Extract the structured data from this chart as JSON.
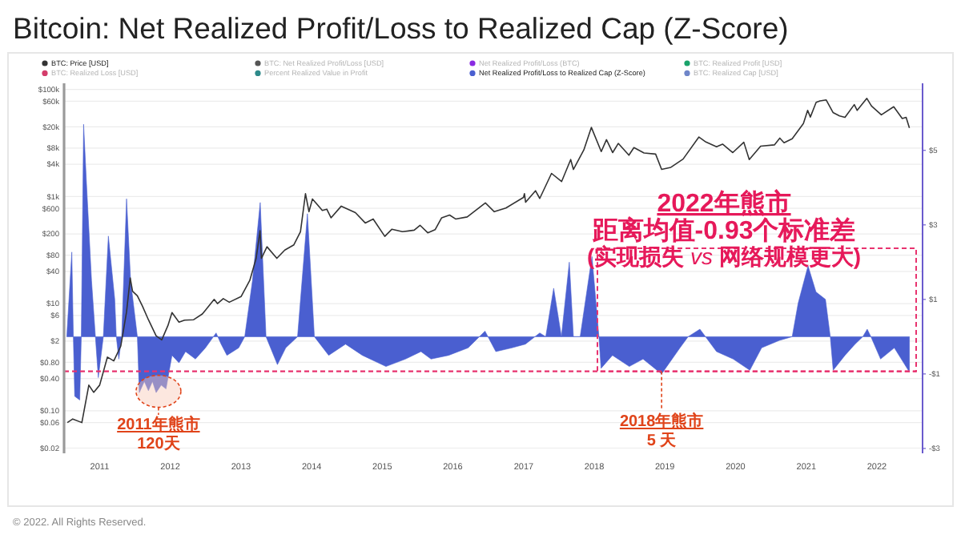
{
  "chart_data": {
    "type": "line",
    "title": "Bitcoin: Net Realized Profit/Loss to Realized Cap (Z-Score)",
    "xlim": [
      "2010-07-01",
      "2022-08-25"
    ],
    "marker": "none",
    "xticks": [
      {
        "value": "2011-01-01",
        "label": "2011"
      },
      {
        "value": "2012-01-01",
        "label": "2012"
      },
      {
        "value": "2013-01-01",
        "label": "2013"
      },
      {
        "value": "2014-01-01",
        "label": "2014"
      },
      {
        "value": "2015-01-01",
        "label": "2015"
      },
      {
        "value": "2016-01-01",
        "label": "2016"
      },
      {
        "value": "2017-01-01",
        "label": "2017"
      },
      {
        "value": "2018-01-01",
        "label": "2018"
      },
      {
        "value": "2019-01-01",
        "label": "2019"
      },
      {
        "value": "2020-01-01",
        "label": "2020"
      },
      {
        "value": "2021-01-01",
        "label": "2021"
      },
      {
        "value": "2022-01-01",
        "label": "2022"
      }
    ],
    "log": "y",
    "ylim": [
      0.016,
      130000
    ],
    "yticks": [
      {
        "value": 100000,
        "label": "$100k"
      },
      {
        "value": 60000,
        "label": "$60k"
      },
      {
        "value": 20000,
        "label": "$20k"
      },
      {
        "value": 8000,
        "label": "$8k"
      },
      {
        "value": 4000,
        "label": "$4k"
      },
      {
        "value": 1000,
        "label": "$1k"
      },
      {
        "value": 600,
        "label": "$600"
      },
      {
        "value": 200,
        "label": "$200"
      },
      {
        "value": 80,
        "label": "$80"
      },
      {
        "value": 40,
        "label": "$40"
      },
      {
        "value": 10,
        "label": "$10"
      },
      {
        "value": 6,
        "label": "$6"
      },
      {
        "value": 2,
        "label": "$2"
      },
      {
        "value": 0.8,
        "label": "$0.80"
      },
      {
        "value": 0.4,
        "label": "$0.40"
      },
      {
        "value": 0.1,
        "label": "$0.10"
      },
      {
        "value": 0.06,
        "label": "$0.06"
      },
      {
        "value": 0.02,
        "label": "$0.02"
      }
    ],
    "y2lim": [
      -3.13,
      6.8
    ],
    "y2ticks": [
      {
        "value": 5,
        "label": "$5"
      },
      {
        "value": 3,
        "label": "$3"
      },
      {
        "value": 1,
        "label": "$1"
      },
      {
        "value": -1,
        "label": "-$1"
      },
      {
        "value": -3,
        "label": "-$3"
      }
    ],
    "grid": "y",
    "legend": "top",
    "ref_lines": [
      {
        "axis": "y2",
        "value": -0.93,
        "color": "#e8336f",
        "line_style": "dashed"
      }
    ],
    "annotations": [
      "2022年熊市",
      "距离均值-0.93个标准差",
      "(实现损失 *vs* 网络规模更大)",
      {
        "text": "2011年熊市",
        "x": "2011-11-01",
        "y": 0.23
      },
      "120天",
      {
        "text": "2018年熊市",
        "x": "2018-12-15",
        "y": 0.54
      },
      "5 天",
      "© 2022. All Rights Reserved."
    ],
    "series": [
      {
        "name": "BTC: Price [USD]",
        "color": "#333333",
        "x": [
          "2010-07-18",
          "2010-08-15",
          "2010-10-01",
          "2010-11-06",
          "2010-12-01",
          "2011-01-01",
          "2011-02-10",
          "2011-03-15",
          "2011-04-20",
          "2011-05-20",
          "2011-06-08",
          "2011-06-20",
          "2011-07-15",
          "2011-08-10",
          "2011-09-10",
          "2011-10-20",
          "2011-11-18",
          "2011-12-20",
          "2012-01-10",
          "2012-02-15",
          "2012-03-15",
          "2012-05-01",
          "2012-06-15",
          "2012-08-15",
          "2012-09-01",
          "2012-10-01",
          "2012-11-01",
          "2013-01-01",
          "2013-02-15",
          "2013-03-20",
          "2013-04-09",
          "2013-04-16",
          "2013-05-15",
          "2013-07-05",
          "2013-08-15",
          "2013-10-01",
          "2013-11-04",
          "2013-11-30",
          "2013-12-18",
          "2014-01-05",
          "2014-02-25",
          "2014-03-20",
          "2014-04-11",
          "2014-06-03",
          "2014-08-15",
          "2014-10-05",
          "2014-11-15",
          "2015-01-14",
          "2015-02-20",
          "2015-04-15",
          "2015-06-15",
          "2015-07-15",
          "2015-08-24",
          "2015-10-01",
          "2015-11-04",
          "2015-12-15",
          "2016-01-15",
          "2016-03-15",
          "2016-06-17",
          "2016-08-02",
          "2016-10-01",
          "2016-12-31",
          "2017-01-05",
          "2017-01-11",
          "2017-03-03",
          "2017-03-25",
          "2017-05-25",
          "2017-07-16",
          "2017-09-01",
          "2017-09-15",
          "2017-11-08",
          "2017-12-17",
          "2018-02-06",
          "2018-03-05",
          "2018-04-06",
          "2018-05-05",
          "2018-06-29",
          "2018-07-25",
          "2018-09-15",
          "2018-11-14",
          "2018-12-15",
          "2019-02-01",
          "2019-04-05",
          "2019-06-26",
          "2019-08-01",
          "2019-09-25",
          "2019-10-26",
          "2019-12-18",
          "2020-02-13",
          "2020-03-12",
          "2020-05-10",
          "2020-07-20",
          "2020-08-17",
          "2020-09-08",
          "2020-10-20",
          "2020-12-17",
          "2021-01-08",
          "2021-01-22",
          "2021-02-21",
          "2021-03-13",
          "2021-04-14",
          "2021-05-19",
          "2021-06-22",
          "2021-07-20",
          "2021-09-06",
          "2021-09-21",
          "2021-11-10",
          "2021-12-04",
          "2022-01-24",
          "2022-03-29",
          "2022-05-12",
          "2022-06-01",
          "2022-06-18"
        ],
        "values": [
          0.06,
          0.07,
          0.06,
          0.3,
          0.22,
          0.3,
          1.0,
          0.85,
          1.6,
          7,
          30,
          17,
          14,
          9,
          5,
          2.5,
          2.1,
          3.9,
          6.8,
          4.5,
          4.9,
          5.0,
          6.4,
          12,
          10,
          12.4,
          10.6,
          13.5,
          27,
          70,
          230,
          70,
          115,
          70,
          100,
          125,
          220,
          1130,
          520,
          900,
          550,
          580,
          400,
          660,
          500,
          320,
          380,
          180,
          245,
          220,
          235,
          290,
          210,
          240,
          400,
          450,
          380,
          415,
          760,
          520,
          610,
          960,
          1130,
          780,
          1280,
          920,
          2700,
          1900,
          4900,
          3200,
          7400,
          19500,
          6900,
          11500,
          6600,
          9800,
          5900,
          8200,
          6500,
          6200,
          3200,
          3500,
          5000,
          12900,
          10400,
          8500,
          9500,
          6600,
          10300,
          4900,
          8700,
          9200,
          12300,
          10100,
          12000,
          23000,
          40500,
          30500,
          57500,
          61000,
          63500,
          37000,
          32000,
          30000,
          52000,
          40500,
          68000,
          49000,
          33500,
          47500,
          28500,
          30000,
          19000
        ]
      },
      {
        "name": "BTC: Net Realized Profit/Loss [USD]",
        "color": "#555555"
      },
      {
        "name": "Net Realized Profit/Loss (BTC)",
        "color": "#8a2be2"
      },
      {
        "name": "BTC: Realized Profit [USD]",
        "color": "#1aa36b"
      },
      {
        "name": "BTC: Realized Loss [USD]",
        "color": "#d43d6b"
      },
      {
        "name": "Percent Realized Value in Profit",
        "color": "#2e8a8a"
      },
      {
        "name": "Net Realized Profit/Loss to Realized Cap (Z-Score)",
        "color": "#4a5fd0",
        "type": "area",
        "axis": "y2",
        "x": [
          "2010-07-15",
          "2010-08-10",
          "2010-08-18",
          "2010-08-25",
          "2010-09-20",
          "2010-09-28",
          "2010-10-10",
          "2010-10-25",
          "2010-11-20",
          "2010-12-10",
          "2010-12-25",
          "2011-01-20",
          "2011-02-15",
          "2011-03-20",
          "2011-03-28",
          "2011-04-10",
          "2011-04-25",
          "2011-05-20",
          "2011-06-10",
          "2011-07-15",
          "2011-07-25",
          "2011-08-20",
          "2011-09-10",
          "2011-10-01",
          "2011-10-20",
          "2011-11-15",
          "2011-12-10",
          "2012-01-10",
          "2012-02-15",
          "2012-03-20",
          "2012-05-10",
          "2012-07-01",
          "2012-08-25",
          "2012-09-20",
          "2012-10-20",
          "2012-12-20",
          "2013-01-20",
          "2013-03-01",
          "2013-04-10",
          "2013-05-10",
          "2013-07-08",
          "2013-08-20",
          "2013-10-20",
          "2013-11-20",
          "2013-12-10",
          "2014-01-15",
          "2014-03-30",
          "2014-06-25",
          "2014-09-20",
          "2015-01-20",
          "2015-05-01",
          "2015-07-20",
          "2015-09-10",
          "2015-12-10",
          "2016-03-20",
          "2016-06-15",
          "2016-08-10",
          "2016-11-01",
          "2017-01-10",
          "2017-03-25",
          "2017-04-25",
          "2017-06-05",
          "2017-07-15",
          "2017-08-25",
          "2017-09-15",
          "2017-10-20",
          "2017-12-20",
          "2018-01-25",
          "2018-02-05",
          "2018-04-05",
          "2018-07-01",
          "2018-09-10",
          "2018-12-15",
          "2019-03-20",
          "2019-05-01",
          "2019-07-01",
          "2019-09-25",
          "2019-12-20",
          "2020-03-15",
          "2020-05-15",
          "2020-08-15",
          "2020-10-20",
          "2020-11-20",
          "2021-01-10",
          "2021-02-20",
          "2021-04-10",
          "2021-05-05",
          "2021-05-20",
          "2021-07-20",
          "2021-09-10",
          "2021-10-20",
          "2021-11-12",
          "2021-12-01",
          "2022-01-20",
          "2022-04-01",
          "2022-06-18"
        ],
        "values": [
          0,
          2.27,
          0,
          -1.6,
          -1.7,
          0,
          5.7,
          4.1,
          1.5,
          0,
          -1.1,
          0,
          2.7,
          1.0,
          0,
          -0.6,
          0,
          3.7,
          1.5,
          0,
          -1.5,
          -1.2,
          -1.45,
          -1.2,
          -1.5,
          -1.3,
          -1.4,
          -0.5,
          -0.7,
          -0.4,
          -0.6,
          -0.3,
          0.1,
          -0.2,
          -0.5,
          -0.3,
          0,
          1.5,
          3.6,
          0,
          -0.75,
          -0.3,
          0,
          2.0,
          3.3,
          0,
          -0.5,
          -0.2,
          -0.5,
          -0.8,
          -0.6,
          -0.4,
          -0.6,
          -0.5,
          -0.3,
          0.15,
          -0.4,
          -0.3,
          -0.2,
          0.1,
          0,
          1.3,
          0,
          2.0,
          0,
          0,
          2.15,
          0,
          -0.85,
          -0.5,
          -0.8,
          -0.6,
          -1.0,
          -0.3,
          0,
          0.2,
          -0.4,
          -0.6,
          -0.9,
          -0.3,
          -0.1,
          0,
          0.9,
          1.9,
          1.2,
          1.0,
          0,
          -0.9,
          -0.5,
          -0.2,
          0,
          0.2,
          0,
          -0.6,
          -0.3,
          -0.95
        ]
      },
      {
        "name": "BTC: Realized Cap [USD]",
        "color": "#6f86c9"
      }
    ]
  }
}
